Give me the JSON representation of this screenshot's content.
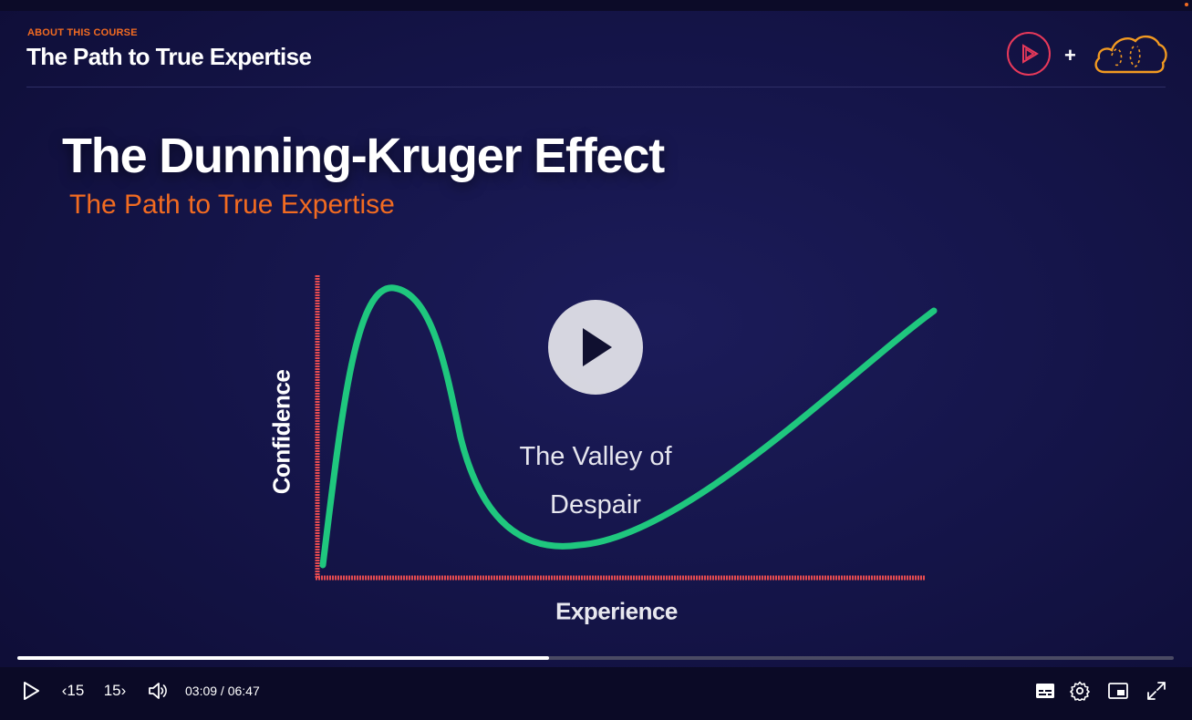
{
  "header": {
    "eyebrow": "ABOUT THIS COURSE",
    "title": "The Path to True Expertise",
    "plus": "+"
  },
  "slide": {
    "title": "The Dunning-Kruger Effect",
    "subtitle": "The Path to True Expertise",
    "chart": {
      "type": "line",
      "xlabel": "Experience",
      "ylabel": "Confidence",
      "annotation": "The Valley of Despair",
      "curve_color": "#1fc77e",
      "axis_color": "#e64b50"
    }
  },
  "player": {
    "progress": 0.46,
    "current_time": "03:09",
    "duration": "06:47",
    "time_separator": " / ",
    "skip_back_label": "15",
    "skip_forward_label": "15"
  },
  "colors": {
    "accent": "#f26b21",
    "brand": "#e8395a",
    "background": "#15154a"
  },
  "icons": [
    "play-icon",
    "rewind-15-icon",
    "forward-15-icon",
    "volume-icon",
    "captions-icon",
    "settings-gear-icon",
    "picture-in-picture-icon",
    "fullscreen-icon"
  ]
}
